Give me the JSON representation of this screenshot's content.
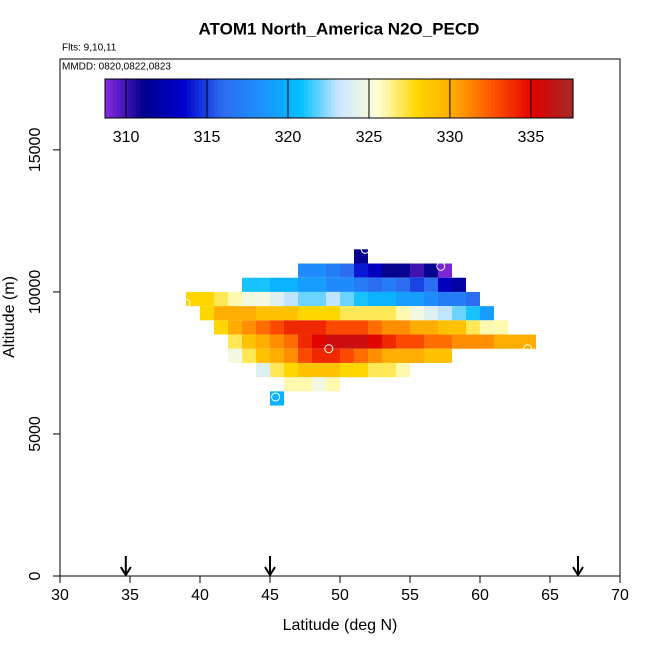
{
  "chart_data": {
    "type": "heatmap",
    "title": "ATOM1 North_America N2O_PECD",
    "subtitles": [
      "Flts: 9,10,11",
      "MMDD: 0820,0822,0823"
    ],
    "x_label": "Latitude (deg N)",
    "y_label": "Altitude (m)",
    "xlim": [
      30,
      70
    ],
    "xticks": [
      30,
      35,
      40,
      45,
      50,
      55,
      60,
      65,
      70
    ],
    "ylim": [
      0,
      18200
    ],
    "yticks": [
      0,
      5000,
      10000,
      15000
    ],
    "clim": [
      308.7,
      337.6
    ],
    "cticks": [
      310,
      315,
      320,
      325,
      330,
      335
    ],
    "colorscale": [
      "#8a2be2",
      "#00008b",
      "#0000cd",
      "#2b6cf0",
      "#1e90ff",
      "#00bfff",
      "#cce6ff",
      "#ffffd6",
      "#ffd700",
      "#ffa500",
      "#ff5000",
      "#e00000",
      "#a52a2a"
    ],
    "rows": [
      {
        "y": 11000,
        "x": [
          51
        ],
        "values": [
          311
        ]
      },
      {
        "y": 10500,
        "x": [
          47,
          48,
          49,
          50,
          51,
          52,
          53,
          54,
          55,
          56,
          57
        ],
        "values": [
          318,
          318,
          317,
          316,
          314,
          313,
          311,
          311,
          310,
          311,
          309
        ]
      },
      {
        "y": 10000,
        "x": [
          43,
          44,
          45,
          46,
          47,
          48,
          49,
          50,
          51,
          52,
          53,
          54,
          55,
          56,
          57,
          58
        ],
        "values": [
          321,
          321,
          320,
          320,
          319,
          319,
          318,
          318,
          317,
          316,
          317,
          316,
          315,
          316,
          313,
          312
        ]
      },
      {
        "y": 9500,
        "x": [
          39,
          40,
          41,
          42,
          43,
          44,
          45,
          46,
          47,
          48,
          49,
          50,
          51,
          52,
          53,
          54,
          55,
          56,
          57,
          58,
          59
        ],
        "values": [
          328,
          328,
          327,
          326,
          325,
          325,
          324,
          323,
          322,
          322,
          323,
          322,
          321,
          320,
          320,
          319,
          319,
          318,
          317,
          317,
          316
        ]
      },
      {
        "y": 9000,
        "x": [
          40,
          41,
          42,
          43,
          44,
          45,
          46,
          47,
          48,
          49,
          50,
          51,
          52,
          53,
          54,
          55,
          56,
          57,
          58,
          59,
          60
        ],
        "values": [
          328,
          330,
          330,
          330,
          329,
          329,
          329,
          328,
          328,
          328,
          327,
          327,
          327,
          327,
          326,
          325,
          324,
          323,
          322,
          321,
          319
        ]
      },
      {
        "y": 8500,
        "x": [
          41,
          42,
          43,
          44,
          45,
          46,
          47,
          48,
          49,
          50,
          51,
          52,
          53,
          54,
          55,
          56,
          57,
          58,
          59,
          60,
          61
        ],
        "values": [
          328,
          330,
          331,
          332,
          333,
          334,
          334,
          334,
          333,
          333,
          333,
          332,
          331,
          331,
          330,
          330,
          329,
          329,
          327,
          326,
          326
        ]
      },
      {
        "y": 8000,
        "x": [
          42,
          43,
          44,
          45,
          46,
          47,
          48,
          49,
          50,
          51,
          52,
          53,
          54,
          55,
          56,
          57,
          58,
          59,
          60,
          61,
          62,
          63
        ],
        "values": [
          327,
          329,
          330,
          331,
          332,
          334,
          335,
          336,
          336,
          336,
          335,
          334,
          333,
          333,
          332,
          332,
          331,
          331,
          331,
          330,
          330,
          330
        ]
      },
      {
        "y": 7500,
        "x": [
          42,
          43,
          44,
          45,
          46,
          47,
          48,
          49,
          50,
          51,
          52,
          53,
          54,
          55,
          56,
          57
        ],
        "values": [
          325,
          327,
          329,
          330,
          331,
          333,
          334,
          334,
          333,
          332,
          331,
          330,
          330,
          330,
          329,
          329
        ]
      },
      {
        "y": 7000,
        "x": [
          44,
          45,
          46,
          47,
          48,
          49,
          50,
          51,
          52,
          53,
          54
        ],
        "values": [
          324,
          327,
          328,
          329,
          329,
          329,
          328,
          328,
          327,
          327,
          326
        ]
      },
      {
        "y": 6500,
        "x": [
          46,
          47,
          48,
          49
        ],
        "values": [
          326,
          326,
          325,
          326
        ]
      },
      {
        "y": 6000,
        "x": [
          45
        ],
        "values": [
          320
        ]
      }
    ],
    "markers": {
      "x": [
        51.8,
        57.2,
        39,
        49.2,
        63.4,
        45.4
      ],
      "y": [
        11500,
        10900,
        9600,
        8000,
        8000,
        6300
      ]
    },
    "arrows_x": [
      34.7,
      45,
      67
    ]
  }
}
